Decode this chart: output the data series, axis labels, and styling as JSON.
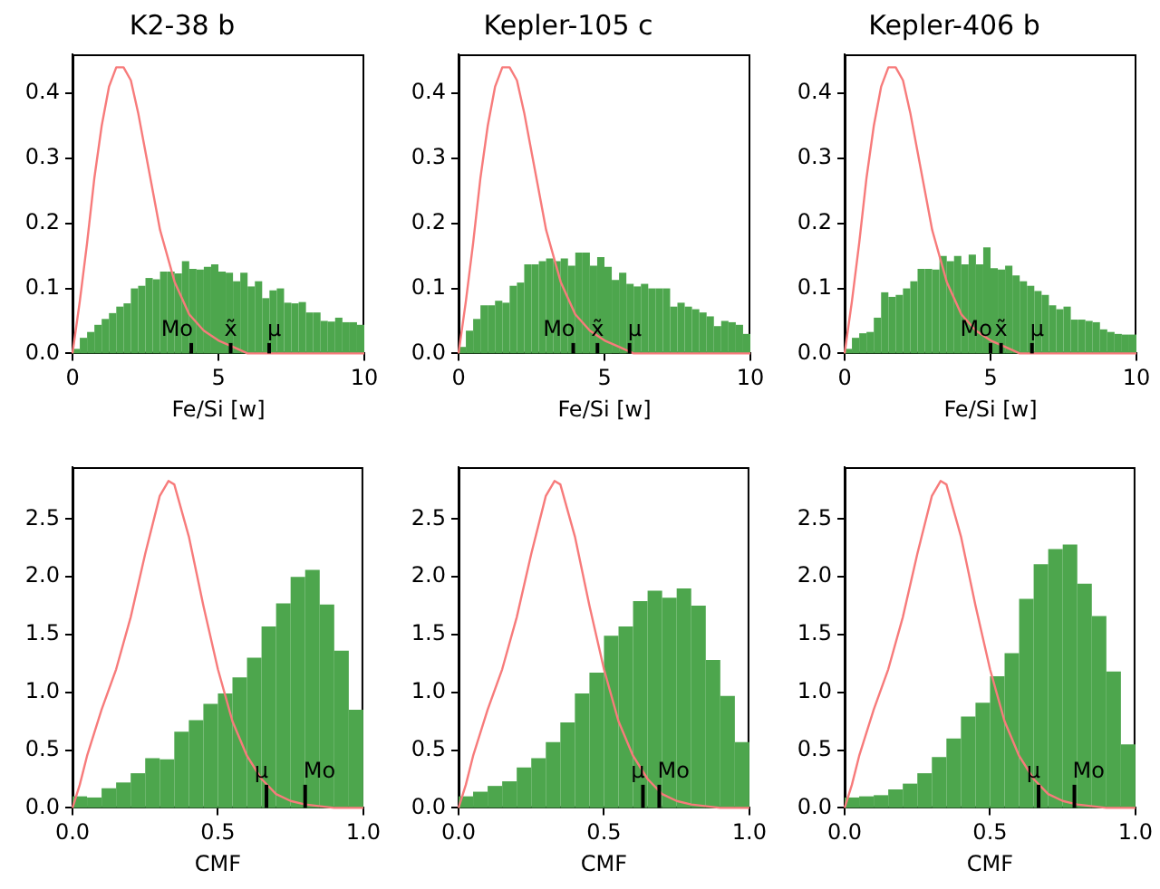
{
  "chart_data": [
    {
      "type": "histogram",
      "title": "K2-38 b",
      "xlabel": "Fe/Si [w]",
      "xlim": [
        0,
        10
      ],
      "ylim": [
        0,
        0.46
      ],
      "xticks": [
        0,
        5,
        10
      ],
      "yticks": [
        {
          "value": 0,
          "label": "0.0"
        },
        {
          "value": 0.1,
          "label": "0.1"
        },
        {
          "value": 0.2,
          "label": "0.2"
        },
        {
          "value": 0.3,
          "label": "0.3"
        },
        {
          "value": 0.4,
          "label": "0.4"
        }
      ],
      "grid": false,
      "series": [
        {
          "type": "histogram",
          "color": "#4da64d",
          "bins": [
            0,
            0.25,
            0.5,
            0.75,
            1,
            1.25,
            1.5,
            1.75,
            2,
            2.25,
            2.5,
            2.75,
            3,
            3.25,
            3.5,
            3.75,
            4,
            4.25,
            4.5,
            4.75,
            5,
            5.25,
            5.5,
            5.75,
            6,
            6.25,
            6.5,
            6.75,
            7,
            7.25,
            7.5,
            7.75,
            8,
            8.25,
            8.5,
            8.75,
            9,
            9.25,
            9.5,
            9.75,
            10
          ],
          "values": [
            0.007,
            0.024,
            0.033,
            0.044,
            0.053,
            0.062,
            0.072,
            0.077,
            0.1,
            0.104,
            0.116,
            0.114,
            0.126,
            0.126,
            0.123,
            0.142,
            0.13,
            0.129,
            0.133,
            0.137,
            0.126,
            0.124,
            0.111,
            0.124,
            0.103,
            0.111,
            0.085,
            0.097,
            0.1,
            0.078,
            0.077,
            0.079,
            0.063,
            0.063,
            0.05,
            0.049,
            0.055,
            0.048,
            0.048,
            0.044
          ]
        },
        {
          "type": "line",
          "color": "#f77b7b",
          "x": [
            0,
            0.25,
            0.5,
            0.75,
            1,
            1.25,
            1.5,
            1.75,
            2,
            2.25,
            2.5,
            2.75,
            3,
            3.5,
            4,
            4.5,
            5,
            5.5,
            6,
            7,
            8,
            10
          ],
          "values": [
            0,
            0.08,
            0.17,
            0.27,
            0.35,
            0.41,
            0.44,
            0.44,
            0.42,
            0.37,
            0.31,
            0.25,
            0.19,
            0.11,
            0.06,
            0.035,
            0.02,
            0.01,
            0,
            0,
            0,
            0
          ]
        }
      ],
      "annotations": [
        {
          "text": "Mo",
          "x": 4.07,
          "y": 0.016
        },
        {
          "text": "x̃",
          "x": 5.42,
          "y": 0.016
        },
        {
          "text": "μ",
          "x": 6.74,
          "y": 0.016
        }
      ]
    },
    {
      "type": "histogram",
      "title": "Kepler-105 c",
      "xlabel": "Fe/Si [w]",
      "xlim": [
        0,
        10
      ],
      "ylim": [
        0,
        0.46
      ],
      "xticks": [
        0,
        5,
        10
      ],
      "yticks": [
        {
          "value": 0,
          "label": "0.0"
        },
        {
          "value": 0.1,
          "label": "0.1"
        },
        {
          "value": 0.2,
          "label": "0.2"
        },
        {
          "value": 0.3,
          "label": "0.3"
        },
        {
          "value": 0.4,
          "label": "0.4"
        }
      ],
      "grid": false,
      "series": [
        {
          "type": "histogram",
          "color": "#4da64d",
          "bins": [
            0,
            0.25,
            0.5,
            0.75,
            1,
            1.25,
            1.5,
            1.75,
            2,
            2.25,
            2.5,
            2.75,
            3,
            3.25,
            3.5,
            3.75,
            4,
            4.25,
            4.5,
            4.75,
            5,
            5.25,
            5.5,
            5.75,
            6,
            6.25,
            6.5,
            6.75,
            7,
            7.25,
            7.5,
            7.75,
            8,
            8.25,
            8.5,
            8.75,
            9,
            9.25,
            9.5,
            9.75,
            10
          ],
          "values": [
            0.01,
            0.035,
            0.053,
            0.074,
            0.074,
            0.081,
            0.078,
            0.104,
            0.109,
            0.137,
            0.137,
            0.142,
            0.146,
            0.142,
            0.146,
            0.135,
            0.155,
            0.155,
            0.135,
            0.148,
            0.133,
            0.113,
            0.124,
            0.107,
            0.103,
            0.107,
            0.1,
            0.1,
            0.1,
            0.072,
            0.078,
            0.072,
            0.068,
            0.063,
            0.057,
            0.042,
            0.05,
            0.048,
            0.044,
            0.03
          ]
        },
        {
          "type": "line",
          "color": "#f77b7b",
          "x": [
            0,
            0.25,
            0.5,
            0.75,
            1,
            1.25,
            1.5,
            1.75,
            2,
            2.25,
            2.5,
            2.75,
            3,
            3.5,
            4,
            4.5,
            5,
            5.5,
            6,
            7,
            8,
            10
          ],
          "values": [
            0,
            0.08,
            0.17,
            0.27,
            0.35,
            0.41,
            0.44,
            0.44,
            0.42,
            0.37,
            0.31,
            0.25,
            0.19,
            0.11,
            0.06,
            0.035,
            0.02,
            0.01,
            0,
            0,
            0,
            0
          ]
        }
      ],
      "annotations": [
        {
          "text": "Mo",
          "x": 3.93,
          "y": 0.016
        },
        {
          "text": "x̃",
          "x": 4.76,
          "y": 0.016
        },
        {
          "text": "μ",
          "x": 5.86,
          "y": 0.016
        }
      ]
    },
    {
      "type": "histogram",
      "title": "Kepler-406 b",
      "xlabel": "Fe/Si [w]",
      "xlim": [
        0,
        10
      ],
      "ylim": [
        0,
        0.46
      ],
      "xticks": [
        0,
        5,
        10
      ],
      "yticks": [
        {
          "value": 0,
          "label": "0.0"
        },
        {
          "value": 0.1,
          "label": "0.1"
        },
        {
          "value": 0.2,
          "label": "0.2"
        },
        {
          "value": 0.3,
          "label": "0.3"
        },
        {
          "value": 0.4,
          "label": "0.4"
        }
      ],
      "grid": false,
      "series": [
        {
          "type": "histogram",
          "color": "#4da64d",
          "bins": [
            0,
            0.25,
            0.5,
            0.75,
            1,
            1.25,
            1.5,
            1.75,
            2,
            2.25,
            2.5,
            2.75,
            3,
            3.25,
            3.5,
            3.75,
            4,
            4.25,
            4.5,
            4.75,
            5,
            5.25,
            5.5,
            5.75,
            6,
            6.25,
            6.5,
            6.75,
            7,
            7.25,
            7.5,
            7.75,
            8,
            8.25,
            8.5,
            8.75,
            9,
            9.25,
            9.5,
            9.75,
            10
          ],
          "values": [
            0.007,
            0.024,
            0.031,
            0.033,
            0.055,
            0.094,
            0.087,
            0.09,
            0.1,
            0.111,
            0.13,
            0.13,
            0.129,
            0.15,
            0.142,
            0.15,
            0.137,
            0.152,
            0.137,
            0.163,
            0.131,
            0.129,
            0.135,
            0.12,
            0.111,
            0.104,
            0.096,
            0.09,
            0.074,
            0.068,
            0.072,
            0.052,
            0.052,
            0.05,
            0.048,
            0.037,
            0.033,
            0.03,
            0.029,
            0.029
          ]
        },
        {
          "type": "line",
          "color": "#f77b7b",
          "x": [
            0,
            0.25,
            0.5,
            0.75,
            1,
            1.25,
            1.5,
            1.75,
            2,
            2.25,
            2.5,
            2.75,
            3,
            3.5,
            4,
            4.5,
            5,
            5.5,
            6,
            7,
            8,
            10
          ],
          "values": [
            0,
            0.08,
            0.17,
            0.27,
            0.35,
            0.41,
            0.44,
            0.44,
            0.42,
            0.37,
            0.31,
            0.25,
            0.19,
            0.11,
            0.06,
            0.035,
            0.02,
            0.01,
            0,
            0,
            0,
            0
          ]
        }
      ],
      "annotations": [
        {
          "text": "Mo",
          "x": 5.0,
          "y": 0.016
        },
        {
          "text": "x̃",
          "x": 5.36,
          "y": 0.016
        },
        {
          "text": "μ",
          "x": 6.42,
          "y": 0.016
        }
      ]
    },
    {
      "type": "histogram",
      "xlabel": "CMF",
      "xlim": [
        0,
        1
      ],
      "ylim": [
        0,
        2.95
      ],
      "xticks": [
        {
          "value": 0,
          "label": "0.0"
        },
        {
          "value": 0.5,
          "label": "0.5"
        },
        {
          "value": 1,
          "label": "1.0"
        }
      ],
      "yticks": [
        {
          "value": 0,
          "label": "0.0"
        },
        {
          "value": 0.5,
          "label": "0.5"
        },
        {
          "value": 1,
          "label": "1.0"
        },
        {
          "value": 1.5,
          "label": "1.5"
        },
        {
          "value": 2,
          "label": "2.0"
        },
        {
          "value": 2.5,
          "label": "2.5"
        }
      ],
      "grid": false,
      "series": [
        {
          "type": "histogram",
          "color": "#4da64d",
          "bins": [
            0,
            0.05,
            0.1,
            0.15,
            0.2,
            0.25,
            0.3,
            0.35,
            0.4,
            0.45,
            0.5,
            0.55,
            0.6,
            0.65,
            0.7,
            0.75,
            0.8,
            0.85,
            0.9,
            0.95,
            1
          ],
          "values": [
            0.1,
            0.09,
            0.17,
            0.22,
            0.3,
            0.43,
            0.42,
            0.66,
            0.76,
            0.9,
            0.99,
            1.13,
            1.3,
            1.57,
            1.77,
            2.0,
            2.06,
            1.76,
            1.36,
            0.85
          ]
        },
        {
          "type": "line",
          "color": "#f77b7b",
          "x": [
            0,
            0.025,
            0.05,
            0.1,
            0.15,
            0.2,
            0.25,
            0.3,
            0.33,
            0.35,
            0.4,
            0.45,
            0.5,
            0.55,
            0.6,
            0.65,
            0.7,
            0.75,
            0.8,
            0.9,
            1
          ],
          "values": [
            0,
            0.2,
            0.45,
            0.85,
            1.2,
            1.65,
            2.2,
            2.7,
            2.83,
            2.8,
            2.35,
            1.75,
            1.2,
            0.75,
            0.45,
            0.25,
            0.12,
            0.06,
            0.03,
            0,
            0
          ]
        }
      ],
      "annotations": [
        {
          "text": "μ",
          "x": 0.667,
          "y": 0.2
        },
        {
          "text": "Mo",
          "x": 0.8,
          "y": 0.2
        }
      ]
    },
    {
      "type": "histogram",
      "xlabel": "CMF",
      "xlim": [
        0,
        1
      ],
      "ylim": [
        0,
        2.95
      ],
      "xticks": [
        {
          "value": 0,
          "label": "0.0"
        },
        {
          "value": 0.5,
          "label": "0.5"
        },
        {
          "value": 1,
          "label": "1.0"
        }
      ],
      "yticks": [
        {
          "value": 0,
          "label": "0.0"
        },
        {
          "value": 0.5,
          "label": "0.5"
        },
        {
          "value": 1,
          "label": "1.0"
        },
        {
          "value": 1.5,
          "label": "1.5"
        },
        {
          "value": 2,
          "label": "2.0"
        },
        {
          "value": 2.5,
          "label": "2.5"
        }
      ],
      "grid": false,
      "series": [
        {
          "type": "histogram",
          "color": "#4da64d",
          "bins": [
            0,
            0.05,
            0.1,
            0.15,
            0.2,
            0.25,
            0.3,
            0.35,
            0.4,
            0.45,
            0.5,
            0.55,
            0.6,
            0.65,
            0.7,
            0.75,
            0.8,
            0.85,
            0.9,
            0.95,
            1
          ],
          "values": [
            0.1,
            0.14,
            0.19,
            0.23,
            0.35,
            0.43,
            0.57,
            0.74,
            0.99,
            1.17,
            1.49,
            1.57,
            1.79,
            1.88,
            1.82,
            1.9,
            1.75,
            1.28,
            0.97,
            0.57
          ]
        },
        {
          "type": "line",
          "color": "#f77b7b",
          "x": [
            0,
            0.025,
            0.05,
            0.1,
            0.15,
            0.2,
            0.25,
            0.3,
            0.33,
            0.35,
            0.4,
            0.45,
            0.5,
            0.55,
            0.6,
            0.65,
            0.7,
            0.75,
            0.8,
            0.9,
            1
          ],
          "values": [
            0,
            0.2,
            0.45,
            0.85,
            1.2,
            1.65,
            2.2,
            2.7,
            2.83,
            2.8,
            2.35,
            1.75,
            1.2,
            0.75,
            0.45,
            0.25,
            0.12,
            0.06,
            0.03,
            0,
            0
          ]
        }
      ],
      "annotations": [
        {
          "text": "μ",
          "x": 0.634,
          "y": 0.2
        },
        {
          "text": "Mo",
          "x": 0.69,
          "y": 0.2
        }
      ]
    },
    {
      "type": "histogram",
      "xlabel": "CMF",
      "xlim": [
        0,
        1
      ],
      "ylim": [
        0,
        2.95
      ],
      "xticks": [
        {
          "value": 0,
          "label": "0.0"
        },
        {
          "value": 0.5,
          "label": "0.5"
        },
        {
          "value": 1,
          "label": "1.0"
        }
      ],
      "yticks": [
        {
          "value": 0,
          "label": "0.0"
        },
        {
          "value": 0.5,
          "label": "0.5"
        },
        {
          "value": 1,
          "label": "1.0"
        },
        {
          "value": 1.5,
          "label": "1.5"
        },
        {
          "value": 2,
          "label": "2.0"
        },
        {
          "value": 2.5,
          "label": "2.5"
        }
      ],
      "grid": false,
      "series": [
        {
          "type": "histogram",
          "color": "#4da64d",
          "bins": [
            0,
            0.05,
            0.1,
            0.15,
            0.2,
            0.25,
            0.3,
            0.35,
            0.4,
            0.45,
            0.5,
            0.55,
            0.6,
            0.65,
            0.7,
            0.75,
            0.8,
            0.85,
            0.9,
            0.95,
            1
          ],
          "values": [
            0.09,
            0.1,
            0.11,
            0.16,
            0.21,
            0.3,
            0.44,
            0.6,
            0.79,
            0.91,
            1.14,
            1.34,
            1.81,
            2.11,
            2.24,
            2.28,
            1.94,
            1.66,
            1.18,
            0.55
          ]
        },
        {
          "type": "line",
          "color": "#f77b7b",
          "x": [
            0,
            0.025,
            0.05,
            0.1,
            0.15,
            0.2,
            0.25,
            0.3,
            0.33,
            0.35,
            0.4,
            0.45,
            0.5,
            0.55,
            0.6,
            0.65,
            0.7,
            0.75,
            0.8,
            0.9,
            1
          ],
          "values": [
            0,
            0.2,
            0.45,
            0.85,
            1.2,
            1.65,
            2.2,
            2.7,
            2.83,
            2.8,
            2.35,
            1.75,
            1.2,
            0.75,
            0.45,
            0.25,
            0.12,
            0.06,
            0.03,
            0,
            0
          ]
        }
      ],
      "annotations": [
        {
          "text": "μ",
          "x": 0.667,
          "y": 0.2
        },
        {
          "text": "Mo",
          "x": 0.79,
          "y": 0.2
        }
      ]
    }
  ]
}
